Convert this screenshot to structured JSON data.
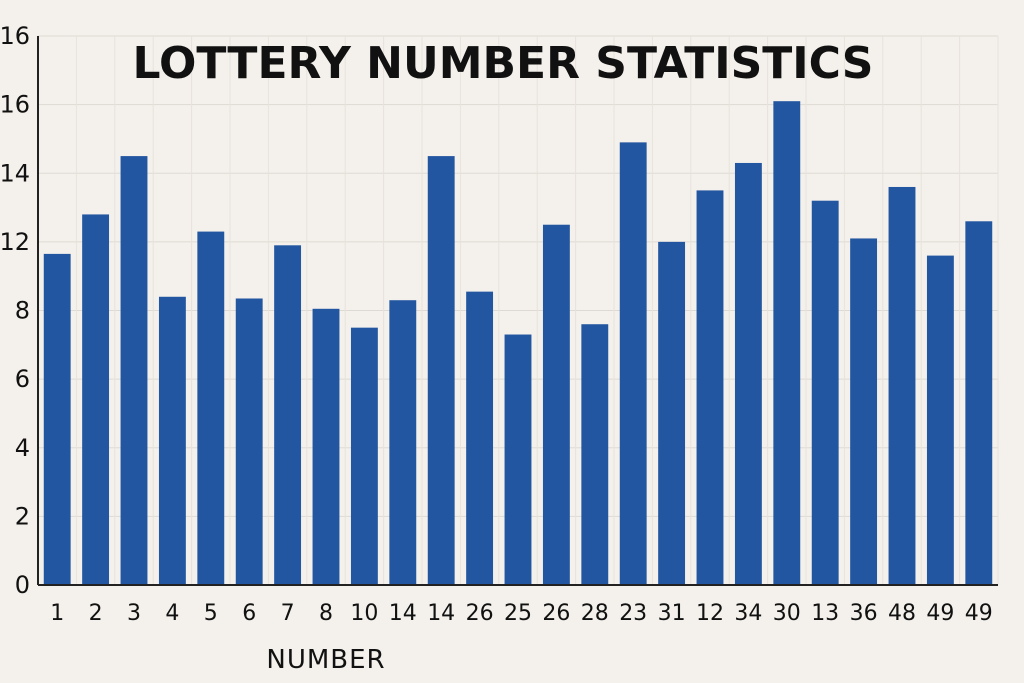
{
  "chart_data": {
    "type": "bar",
    "title": "LOTTERY NUMBER STATISTICS",
    "xlabel": "NUMBER",
    "ylabel": "",
    "grid": true,
    "bar_color": "#2356a0",
    "y_tick_labels": [
      "0",
      "2",
      "4",
      "6",
      "8",
      "12",
      "14",
      "16",
      "16"
    ],
    "categories": [
      "1",
      "2",
      "3",
      "4",
      "5",
      "6",
      "7",
      "8",
      "10",
      "14",
      "14",
      "26",
      "25",
      "26",
      "28",
      "23",
      "31",
      "12",
      "34",
      "30",
      "13",
      "36",
      "48",
      "49",
      "49"
    ],
    "values": [
      11.3,
      12.8,
      14.5,
      8.8,
      12.3,
      8.7,
      11.8,
      8.1,
      7.5,
      8.6,
      14.5,
      9.1,
      7.3,
      12.5,
      7.6,
      14.9,
      12.0,
      13.5,
      14.3,
      16.1,
      13.2,
      12.1,
      13.6,
      11.2,
      12.6
    ]
  }
}
